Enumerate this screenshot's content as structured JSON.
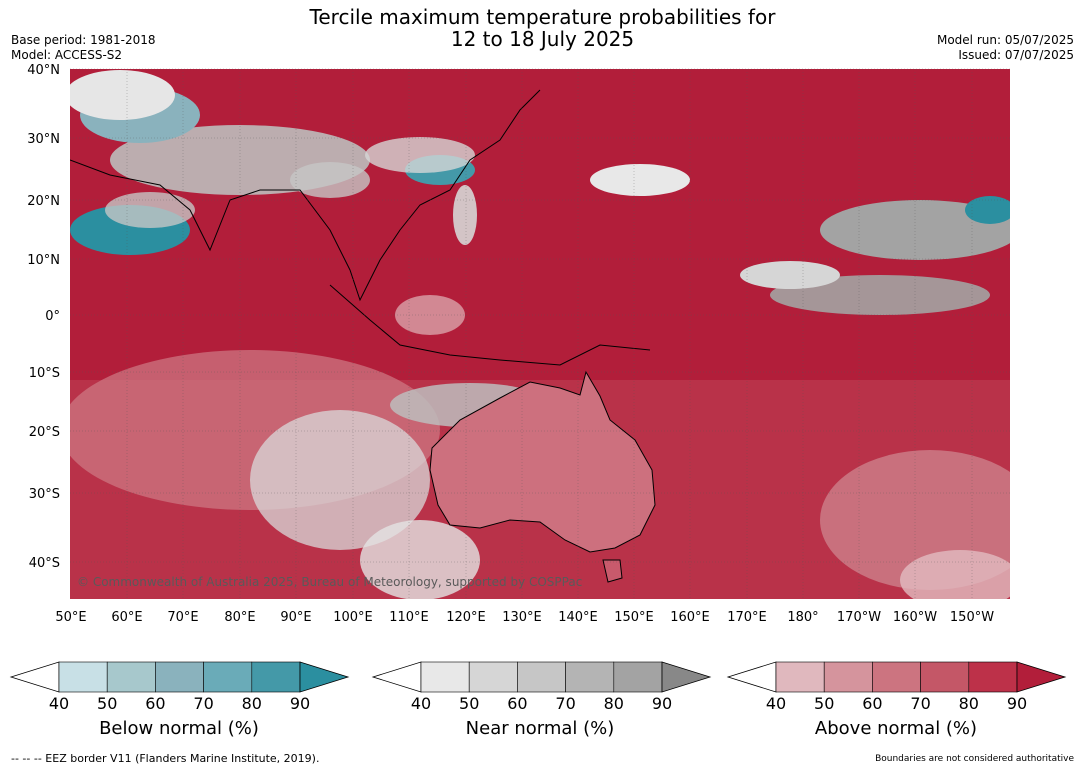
{
  "header": {
    "title_line1": "Tercile maximum temperature probabilities for",
    "title_line2": "12 to 18 July 2025",
    "base_period": "Base period: 1981-2018",
    "model": "Model: ACCESS-S2",
    "model_run": "Model run: 05/07/2025",
    "issued": "Issued: 07/07/2025"
  },
  "map": {
    "copyright": "© Commonwealth of Australia 2025, Bureau of Meteorology, supported by COSPPac",
    "lat_labels": [
      "40°N",
      "30°N",
      "20°N",
      "10°N",
      "0°",
      "10°S",
      "20°S",
      "30°S",
      "40°S"
    ],
    "lon_labels": [
      "50°E",
      "60°E",
      "70°E",
      "80°E",
      "90°E",
      "100°E",
      "110°E",
      "120°E",
      "130°E",
      "140°E",
      "150°E",
      "160°E",
      "170°E",
      "180°",
      "170°W",
      "160°W",
      "150°W"
    ],
    "colors": {
      "above_dominant": "#b21e3a",
      "near": "#a6a6a6",
      "below": "#2b95a7"
    }
  },
  "colorbars": [
    {
      "name": "below",
      "label": "Below normal (%)",
      "ticks": [
        "40",
        "50",
        "60",
        "70",
        "80",
        "90"
      ],
      "colors": [
        "#c8e0e6",
        "#a7c8cc",
        "#8ab2bd",
        "#6aabb8",
        "#4499a8",
        "#2b8fa0"
      ]
    },
    {
      "name": "near",
      "label": "Near normal (%)",
      "ticks": [
        "40",
        "50",
        "60",
        "70",
        "80",
        "90"
      ],
      "colors": [
        "#e8e8e8",
        "#d6d6d6",
        "#c6c6c6",
        "#b4b4b4",
        "#a3a3a3",
        "#888888"
      ]
    },
    {
      "name": "above",
      "label": "Above normal (%)",
      "ticks": [
        "40",
        "50",
        "60",
        "70",
        "80",
        "90"
      ],
      "colors": [
        "#e0b8be",
        "#d5949d",
        "#cc7480",
        "#c45767",
        "#bd3149",
        "#b21e3a"
      ]
    }
  ],
  "footer": {
    "left": "--  --  -- EEZ border V11 (Flanders Marine Institute, 2019).",
    "right": "Boundaries are not considered authoritative"
  }
}
